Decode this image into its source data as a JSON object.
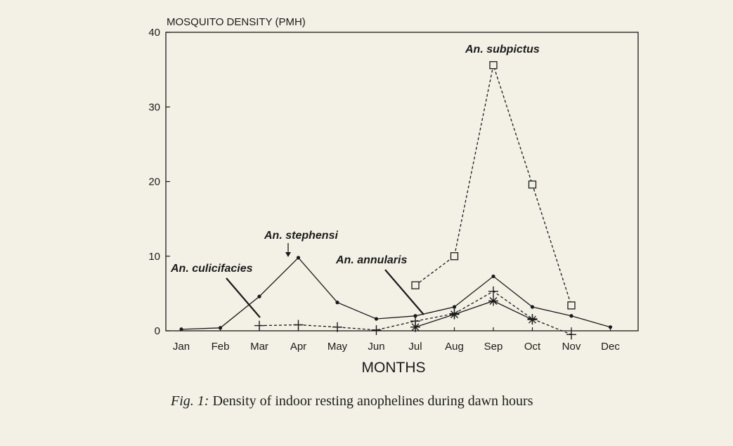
{
  "chart_data": {
    "type": "line",
    "ylabel": "MOSQUITO DENSITY (PMH)",
    "xlabel": "MONTHS",
    "ylim": [
      0,
      40
    ],
    "yticks": [
      "0",
      "10",
      "20",
      "30",
      "40"
    ],
    "categories": [
      "Jan",
      "Feb",
      "Mar",
      "Apr",
      "May",
      "Jun",
      "Jul",
      "Aug",
      "Sep",
      "Oct",
      "Nov",
      "Dec"
    ],
    "grid": false,
    "series": [
      {
        "name": "An. stephensi",
        "line": "solid",
        "marker": "dot",
        "values": [
          0.2,
          0.4,
          4.6,
          9.8,
          3.8,
          1.6,
          2.0,
          3.2,
          7.3,
          3.2,
          2.0,
          0.5
        ]
      },
      {
        "name": "An. culicifacies",
        "line": "dashed",
        "marker": "plus",
        "values": [
          null,
          null,
          0.7,
          0.8,
          0.5,
          0.1,
          1.3,
          2.3,
          5.3,
          1.6,
          -0.5,
          null
        ]
      },
      {
        "name": "An. annularis",
        "line": "solid",
        "marker": "star",
        "values": [
          null,
          null,
          null,
          null,
          null,
          null,
          0.5,
          2.2,
          4.0,
          1.5,
          null,
          null
        ]
      },
      {
        "name": "An. subpictus",
        "line": "dashed",
        "marker": "square",
        "values": [
          null,
          null,
          null,
          null,
          null,
          null,
          6.1,
          10.0,
          35.6,
          19.6,
          3.4,
          null
        ]
      }
    ],
    "annotations": [
      "An. subpictus",
      "An. stephensi",
      "An. culicifacies",
      "An. annularis"
    ]
  },
  "caption": {
    "fig_label": "Fig. 1:",
    "text": "Density of indoor resting anophelines during dawn hours"
  }
}
